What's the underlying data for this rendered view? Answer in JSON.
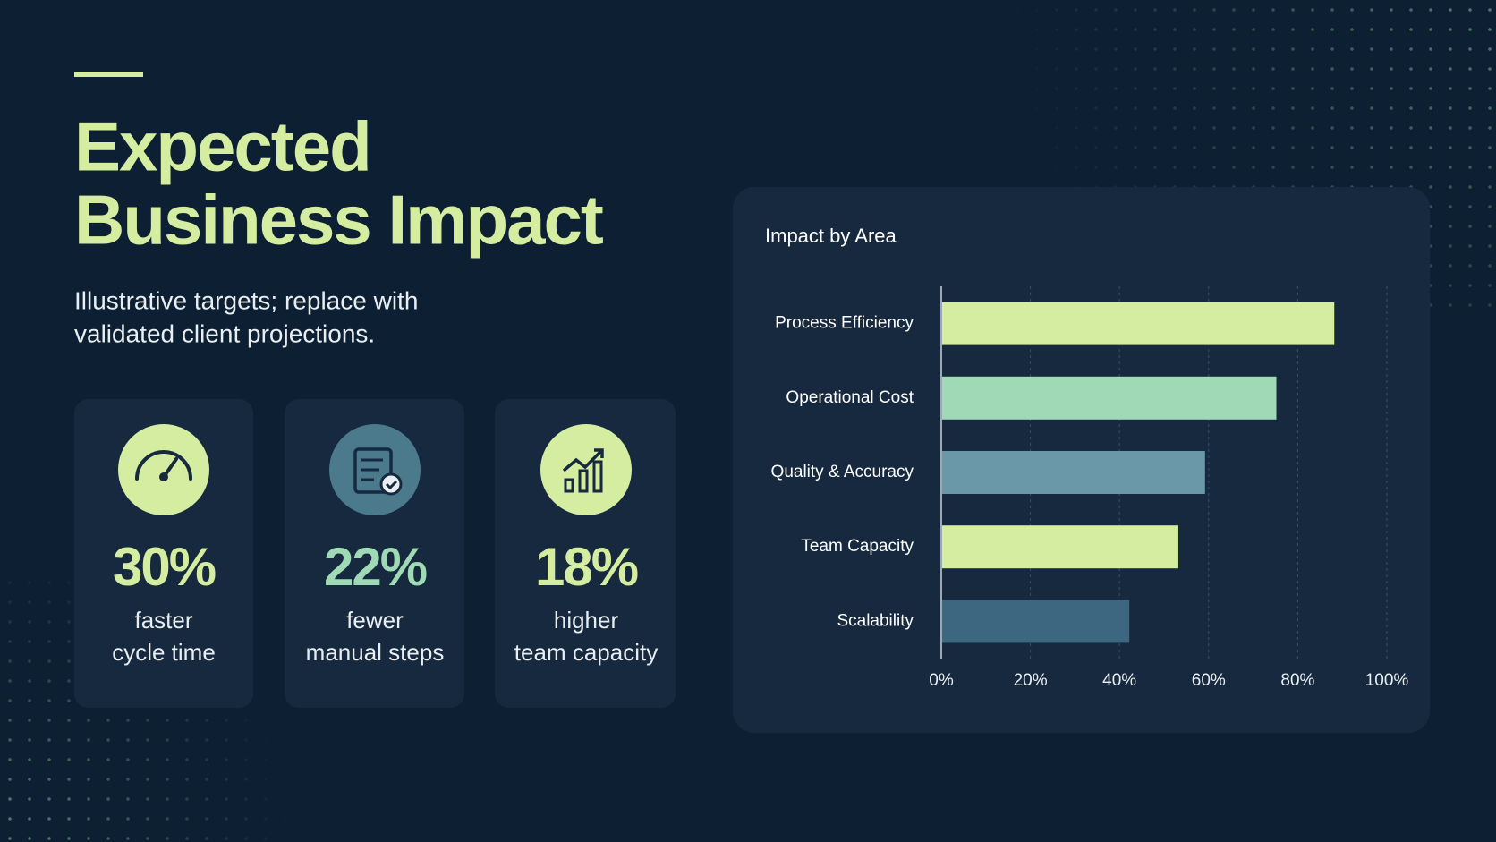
{
  "header": {
    "title_lines": [
      "Expected",
      "Business Impact"
    ],
    "subtitle_lines": [
      "Illustrative targets; replace with",
      "validated client projections."
    ]
  },
  "stats": [
    {
      "value": "30%",
      "label_lines": [
        "faster",
        "cycle time"
      ]
    },
    {
      "value": "22%",
      "label_lines": [
        "fewer",
        "manual steps"
      ]
    },
    {
      "value": "18%",
      "label_lines": [
        "higher",
        "team capacity"
      ]
    }
  ],
  "chart_data": {
    "type": "bar",
    "orientation": "horizontal",
    "title": "Impact by Area",
    "categories": [
      "Process Efficiency",
      "Operational Cost",
      "Quality & Accuracy",
      "Team Capacity",
      "Scalability"
    ],
    "values": [
      88,
      75,
      59,
      53,
      42
    ],
    "colors": [
      "#d4eda0",
      "#9fd9b5",
      "#6a98a8",
      "#d4eda0",
      "#3d6680"
    ],
    "xlim": [
      0,
      100
    ],
    "xticks": [
      {
        "value": 0,
        "label": "0%"
      },
      {
        "value": 20,
        "label": "20%"
      },
      {
        "value": 40,
        "label": "40%"
      },
      {
        "value": 60,
        "label": "60%"
      },
      {
        "value": 80,
        "label": "80%"
      },
      {
        "value": 100,
        "label": "100%"
      }
    ],
    "grid": true
  }
}
